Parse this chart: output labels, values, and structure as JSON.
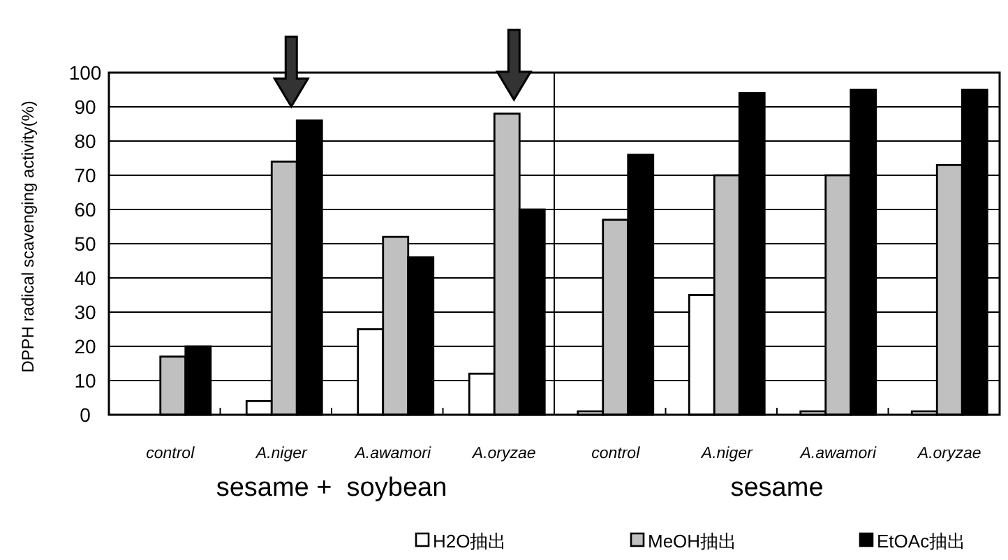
{
  "chart_data": {
    "type": "bar",
    "ylabel": "DPPH radical scavenging activity(%)",
    "categories": [
      "control",
      "A.niger",
      "A.awamori",
      "A.oryzae",
      "control",
      "A.niger",
      "A.awamori",
      "A.oryzae"
    ],
    "series": [
      {
        "name": "H2O抽出",
        "color": "#ffffff",
        "values": [
          null,
          4,
          25,
          12,
          1,
          35,
          1,
          1
        ]
      },
      {
        "name": "MeOH抽出",
        "color": "#c0c0c0",
        "values": [
          17,
          74,
          52,
          88,
          57,
          70,
          70,
          73
        ]
      },
      {
        "name": "EtOAc抽出",
        "color": "#000000",
        "values": [
          20,
          86,
          46,
          60,
          76,
          94,
          95,
          95
        ]
      }
    ],
    "ylim": [
      0,
      100
    ],
    "yticks": [
      0,
      10,
      20,
      30,
      40,
      50,
      60,
      70,
      80,
      90,
      100
    ],
    "grid": "y",
    "legend": "bottom",
    "annotations": [
      "sesame +  soybean",
      "sesame"
    ]
  }
}
